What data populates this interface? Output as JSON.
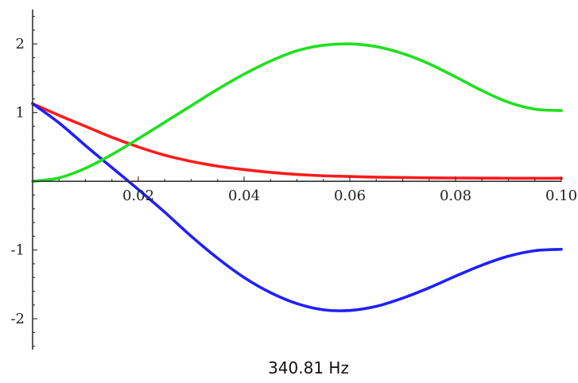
{
  "chart_data": {
    "type": "line",
    "title": "",
    "xlabel": "",
    "ylabel": "",
    "xlim": [
      0,
      0.1
    ],
    "ylim": [
      -2.45,
      2.5
    ],
    "grid": false,
    "legend": "none",
    "x_ticks": [
      {
        "value": 0.02,
        "label": "0.02"
      },
      {
        "value": 0.04,
        "label": "0.04"
      },
      {
        "value": 0.06,
        "label": "0.06"
      },
      {
        "value": 0.08,
        "label": "0.08"
      },
      {
        "value": 0.1,
        "label": "0.10"
      }
    ],
    "y_ticks": [
      {
        "value": 2,
        "label": "2"
      },
      {
        "value": 1,
        "label": "1"
      },
      {
        "value": -1,
        "label": "-1"
      },
      {
        "value": -2,
        "label": "-2"
      }
    ],
    "series": [
      {
        "color": "#ff1a1a",
        "x": [
          0,
          0.005,
          0.01,
          0.015,
          0.02,
          0.025,
          0.03,
          0.035,
          0.04,
          0.045,
          0.05,
          0.055,
          0.06,
          0.065,
          0.07,
          0.075,
          0.08,
          0.085,
          0.09,
          0.095,
          0.1
        ],
        "values": [
          1.13,
          0.96,
          0.8,
          0.64,
          0.5,
          0.38,
          0.29,
          0.22,
          0.17,
          0.13,
          0.1,
          0.08,
          0.07,
          0.06,
          0.055,
          0.05,
          0.048,
          0.046,
          0.045,
          0.044,
          0.044
        ]
      },
      {
        "color": "#1f1fff",
        "x": [
          0,
          0.005,
          0.01,
          0.015,
          0.02,
          0.025,
          0.03,
          0.035,
          0.04,
          0.045,
          0.05,
          0.055,
          0.06,
          0.065,
          0.07,
          0.075,
          0.08,
          0.085,
          0.09,
          0.095,
          0.1
        ],
        "values": [
          1.13,
          0.85,
          0.52,
          0.2,
          -0.12,
          -0.45,
          -0.8,
          -1.12,
          -1.4,
          -1.62,
          -1.78,
          -1.87,
          -1.88,
          -1.82,
          -1.7,
          -1.55,
          -1.38,
          -1.22,
          -1.09,
          -1.01,
          -0.99
        ]
      },
      {
        "color": "#1fe01f",
        "x": [
          0,
          0.005,
          0.01,
          0.015,
          0.02,
          0.025,
          0.03,
          0.035,
          0.04,
          0.045,
          0.05,
          0.055,
          0.06,
          0.065,
          0.07,
          0.075,
          0.08,
          0.085,
          0.09,
          0.095,
          0.1
        ],
        "values": [
          0,
          0.05,
          0.19,
          0.39,
          0.62,
          0.86,
          1.1,
          1.34,
          1.56,
          1.75,
          1.9,
          1.98,
          2.0,
          1.96,
          1.86,
          1.71,
          1.52,
          1.32,
          1.15,
          1.05,
          1.03
        ]
      }
    ]
  },
  "caption": "340.81 Hz"
}
